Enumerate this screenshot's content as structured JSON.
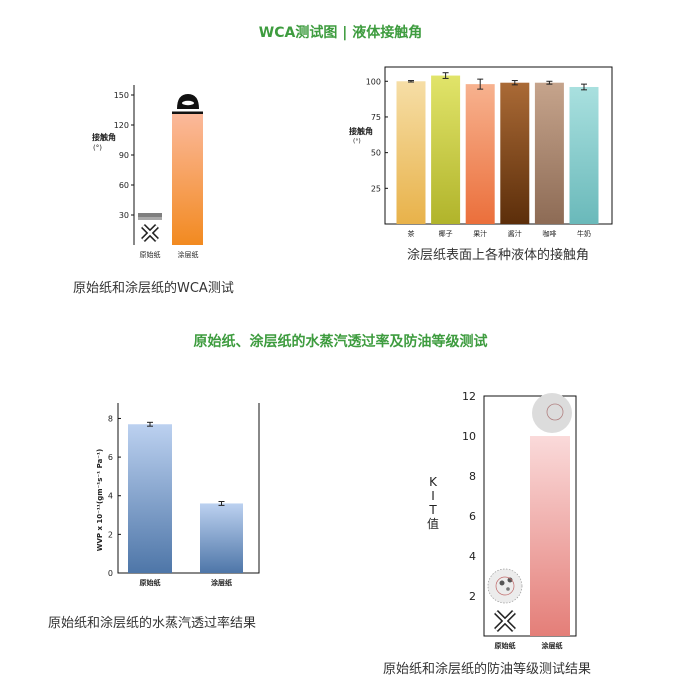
{
  "headings": {
    "top": "WCA测试图 | 液体接触角",
    "middle": "原始纸、涂层纸的水蒸汽透过率及防油等级测试"
  },
  "captions": {
    "wca": "原始纸和涂层纸的WCA测试",
    "liquids": "涂层纸表面上各种液体的接触角",
    "wvp": "原始纸和涂层纸的水蒸汽透过率结果",
    "kit": "原始纸和涂层纸的防油等级测试结果"
  },
  "chart_data": [
    {
      "id": "wca",
      "type": "bar",
      "categories": [
        "原始纸",
        "涂层纸"
      ],
      "values": [
        32,
        132
      ],
      "ylabel": "接触角\n(°)",
      "ylim": [
        0,
        160
      ],
      "yticks": [
        30,
        60,
        90,
        120,
        150
      ],
      "colors": [
        "#8a8a8a",
        "#f39a4c"
      ]
    },
    {
      "id": "liquids",
      "type": "bar",
      "categories": [
        "茶",
        "椰子",
        "果汁",
        "酱汁",
        "咖啡",
        "牛奶"
      ],
      "values": [
        100,
        104,
        98,
        99,
        99,
        96
      ],
      "errors": [
        0.5,
        2,
        3.5,
        1.5,
        1,
        2
      ],
      "ylabel": "接触角\n(°)",
      "ylim": [
        0,
        110
      ],
      "yticks": [
        25,
        50,
        75,
        100
      ],
      "colors": [
        "#ecc367",
        "#c9c63a",
        "#f09162",
        "#8a4e21",
        "#a8846c",
        "#7ccccb"
      ]
    },
    {
      "id": "wvp",
      "type": "bar",
      "categories": [
        "原始纸",
        "涂层纸"
      ],
      "values": [
        7.7,
        3.6
      ],
      "errors": [
        0.1,
        0.1
      ],
      "ylabel": "WVP x 10⁻¹¹(gm⁻¹s⁻¹ Pa⁻¹)",
      "ylim": [
        0,
        8.8
      ],
      "yticks": [
        0,
        2,
        4,
        6,
        8
      ],
      "colors": [
        "#4e76a8",
        "#4e76a8"
      ]
    },
    {
      "id": "kit",
      "type": "bar",
      "categories": [
        "原始纸",
        "涂层纸"
      ],
      "values": [
        0,
        10
      ],
      "ylabel": "KIT值",
      "ylim": [
        0,
        12
      ],
      "yticks": [
        2,
        4,
        6,
        8,
        10,
        12
      ],
      "colors": [
        "#ffffff",
        "#e9847d"
      ]
    }
  ]
}
